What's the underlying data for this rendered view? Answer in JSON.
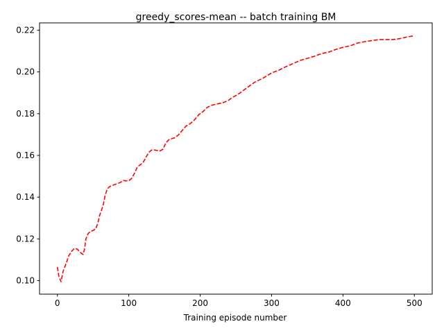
{
  "chart_data": {
    "type": "line",
    "title": "greedy_scores-mean -- batch training BM",
    "xlabel": "Training episode number",
    "ylabel": "",
    "xlim": [
      -25,
      525
    ],
    "ylim": [
      0.0935,
      0.2235
    ],
    "xticks": [
      0,
      100,
      200,
      300,
      400,
      500
    ],
    "yticks": [
      0.1,
      0.12,
      0.14,
      0.16,
      0.18,
      0.2,
      0.22
    ],
    "xtick_labels": [
      "0",
      "100",
      "200",
      "300",
      "400",
      "500"
    ],
    "ytick_labels": [
      "0.10",
      "0.12",
      "0.14",
      "0.16",
      "0.18",
      "0.20",
      "0.22"
    ],
    "grid": false,
    "legend": "none",
    "series": [
      {
        "color": "#ff0000",
        "linestyle": "dashed",
        "x": [
          0,
          2,
          5,
          8,
          12,
          16,
          20,
          24,
          28,
          32,
          36,
          38,
          40,
          43,
          46,
          50,
          54,
          57,
          59,
          61,
          64,
          67,
          70,
          73,
          76,
          80,
          84,
          88,
          92,
          96,
          100,
          104,
          108,
          112,
          116,
          120,
          124,
          128,
          133,
          138,
          143,
          148,
          152,
          156,
          160,
          165,
          170,
          175,
          180,
          186,
          192,
          198,
          204,
          210,
          216,
          222,
          228,
          234,
          240,
          246,
          252,
          258,
          264,
          270,
          276,
          282,
          288,
          294,
          300,
          310,
          320,
          330,
          340,
          350,
          360,
          370,
          380,
          390,
          400,
          410,
          420,
          430,
          440,
          450,
          460,
          470,
          480,
          490,
          498
        ],
        "y": [
          0.1065,
          0.102,
          0.0995,
          0.1045,
          0.108,
          0.112,
          0.114,
          0.1155,
          0.115,
          0.1135,
          0.1125,
          0.115,
          0.12,
          0.1225,
          0.1235,
          0.124,
          0.125,
          0.128,
          0.131,
          0.133,
          0.136,
          0.141,
          0.144,
          0.145,
          0.1455,
          0.146,
          0.1465,
          0.147,
          0.148,
          0.1478,
          0.1478,
          0.149,
          0.1515,
          0.1545,
          0.1555,
          0.1565,
          0.159,
          0.1615,
          0.1628,
          0.1625,
          0.162,
          0.163,
          0.166,
          0.1675,
          0.168,
          0.1685,
          0.17,
          0.172,
          0.174,
          0.1752,
          0.177,
          0.1795,
          0.181,
          0.183,
          0.184,
          0.1845,
          0.185,
          0.1855,
          0.1865,
          0.188,
          0.189,
          0.1905,
          0.192,
          0.1935,
          0.195,
          0.196,
          0.197,
          0.1983,
          0.1995,
          0.2008,
          0.2025,
          0.204,
          0.2055,
          0.2065,
          0.2075,
          0.2088,
          0.2095,
          0.2108,
          0.2118,
          0.2125,
          0.2138,
          0.2145,
          0.215,
          0.2155,
          0.2155,
          0.2155,
          0.216,
          0.2168,
          0.2172
        ]
      }
    ]
  }
}
